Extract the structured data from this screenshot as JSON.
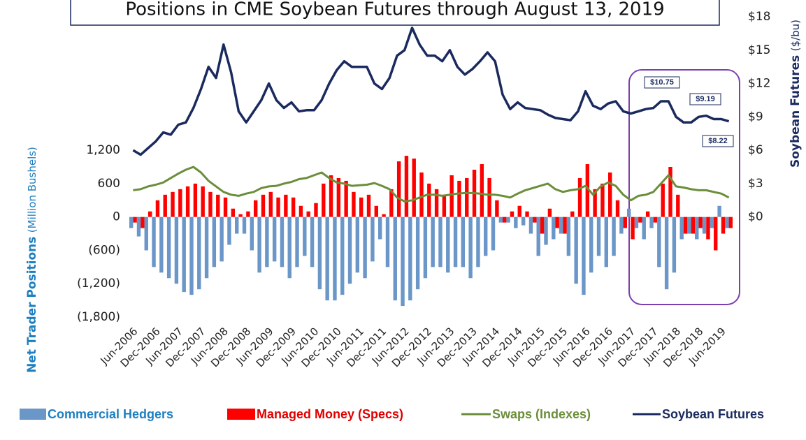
{
  "chart_data": {
    "type": "bar",
    "title": "Positions in CME Soybean Futures through August 13, 2019",
    "y_label": "Net Trader Positions",
    "y_label_unit": "(Million Bushels)",
    "y2_label": "Soybean Futures",
    "y2_label_unit": "($/bu)",
    "annotations": [
      "$10.75",
      "$9.19",
      "$8.22"
    ],
    "categories": [
      "Jun-2006",
      null,
      null,
      "Dec-2006",
      null,
      null,
      "Jun-2007",
      null,
      null,
      "Dec-2007",
      null,
      null,
      "Jun-2008",
      null,
      null,
      "Dec-2008",
      null,
      null,
      "Jun-2009",
      null,
      null,
      "Dec-2009",
      null,
      null,
      "Jun-2010",
      null,
      null,
      "Dec-2010",
      null,
      null,
      "Jun-2011",
      null,
      null,
      "Dec-2011",
      null,
      null,
      "Jun-2012",
      null,
      null,
      "Dec-2012",
      null,
      null,
      "Jun-2013",
      null,
      null,
      "Dec-2013",
      null,
      null,
      "Jun-2014",
      null,
      null,
      "Dec-2014",
      null,
      null,
      "Jun-2015",
      null,
      null,
      "Dec-2015",
      null,
      null,
      "Jun-2016",
      null,
      null,
      "Dec-2016",
      null,
      null,
      "Jun-2017",
      null,
      null,
      "Dec-2017",
      null,
      null,
      "Jun-2018",
      null,
      null,
      "Dec-2018",
      null,
      null,
      "Jun-2019",
      null
    ],
    "ylim": [
      -1800,
      3600
    ],
    "yticks": [
      {
        "value": -1800,
        "label": "(1,800)"
      },
      {
        "value": -1200,
        "label": "(1,200)"
      },
      {
        "value": -600,
        "label": "(600)"
      },
      0,
      600,
      {
        "value": 1200,
        "label": "1,200"
      }
    ],
    "y2lim": [
      -9,
      18
    ],
    "y2ticks": [
      {
        "value": 0,
        "label": "$0"
      },
      {
        "value": 3,
        "label": "$3"
      },
      {
        "value": 6,
        "label": "$6"
      },
      {
        "value": 9,
        "label": "$9"
      },
      {
        "value": 12,
        "label": "$12"
      },
      {
        "value": 15,
        "label": "$15"
      },
      {
        "value": 18,
        "label": "$18"
      }
    ],
    "series": [
      {
        "name": "Commercial Hedgers",
        "type": "bar",
        "color": "#6a96c8",
        "values": [
          -200,
          -350,
          -600,
          -900,
          -1000,
          -1100,
          -1200,
          -1350,
          -1400,
          -1300,
          -1100,
          -900,
          -800,
          -500,
          -300,
          -300,
          -600,
          -1000,
          -900,
          -800,
          -900,
          -1100,
          -900,
          -700,
          -900,
          -1300,
          -1500,
          -1500,
          -1400,
          -1200,
          -1000,
          -1100,
          -800,
          -400,
          -900,
          -1500,
          -1600,
          -1500,
          -1300,
          -1100,
          -900,
          -900,
          -1000,
          -900,
          -900,
          -1100,
          -900,
          -700,
          -600,
          -100,
          -100,
          -200,
          -150,
          -300,
          -700,
          -500,
          -400,
          -300,
          -700,
          -1200,
          -1400,
          -1000,
          -700,
          -900,
          -700,
          -300,
          150,
          -200,
          -400,
          -200,
          -900,
          -1300,
          -1000,
          -400,
          -300,
          -400,
          -300,
          -200,
          200,
          -200
        ]
      },
      {
        "name": "Managed Money (Specs)",
        "type": "bar",
        "color": "#ff0000",
        "values": [
          -100,
          -200,
          100,
          300,
          400,
          450,
          500,
          550,
          600,
          550,
          450,
          400,
          350,
          150,
          50,
          100,
          300,
          400,
          450,
          350,
          400,
          350,
          200,
          100,
          250,
          600,
          750,
          700,
          650,
          450,
          350,
          400,
          200,
          50,
          500,
          1000,
          1100,
          1050,
          800,
          600,
          500,
          400,
          750,
          650,
          700,
          850,
          950,
          700,
          300,
          -100,
          100,
          200,
          100,
          -100,
          -300,
          150,
          -200,
          -300,
          100,
          700,
          950,
          500,
          600,
          800,
          300,
          -200,
          -400,
          -100,
          100,
          -100,
          600,
          900,
          400,
          -300,
          -300,
          -200,
          -400,
          -600,
          -300,
          -200
        ]
      },
      {
        "name": "Swaps (Indexes)",
        "type": "line",
        "color": "#6b8e3a",
        "values": [
          480,
          500,
          550,
          580,
          620,
          700,
          780,
          850,
          900,
          800,
          650,
          550,
          450,
          400,
          380,
          420,
          450,
          520,
          550,
          560,
          600,
          630,
          680,
          700,
          750,
          800,
          700,
          620,
          600,
          560,
          570,
          580,
          610,
          560,
          500,
          350,
          280,
          300,
          350,
          400,
          400,
          380,
          400,
          420,
          430,
          430,
          420,
          400,
          400,
          380,
          350,
          420,
          480,
          520,
          560,
          600,
          500,
          450,
          480,
          500,
          560,
          400,
          550,
          620,
          560,
          400,
          300,
          380,
          400,
          450,
          600,
          750,
          550,
          530,
          500,
          480,
          480,
          450,
          420,
          350
        ]
      },
      {
        "name": "Soybean Futures",
        "type": "line",
        "axis": "y2",
        "color": "#1a2a5e",
        "values": [
          6.0,
          5.6,
          6.2,
          6.8,
          7.6,
          7.4,
          8.3,
          8.5,
          9.8,
          11.5,
          13.5,
          12.5,
          15.5,
          13,
          9.5,
          8.5,
          9.5,
          10.5,
          12,
          10.5,
          9.8,
          10.3,
          9.5,
          9.6,
          9.6,
          10.5,
          12,
          13.2,
          14,
          13.5,
          13.5,
          13.5,
          12,
          11.5,
          12.5,
          14.5,
          15,
          17,
          15.5,
          14.5,
          14.5,
          14,
          15,
          13.5,
          12.8,
          13.3,
          14,
          14.8,
          14,
          11,
          9.7,
          10.3,
          9.8,
          9.7,
          9.6,
          9.2,
          8.9,
          8.8,
          8.7,
          9.5,
          11.3,
          10.0,
          9.7,
          10.2,
          10.4,
          9.5,
          9.3,
          9.5,
          9.7,
          9.8,
          10.4,
          10.4,
          9.0,
          8.5,
          8.5,
          9.0,
          9.1,
          8.8,
          8.8,
          8.6
        ]
      }
    ]
  }
}
